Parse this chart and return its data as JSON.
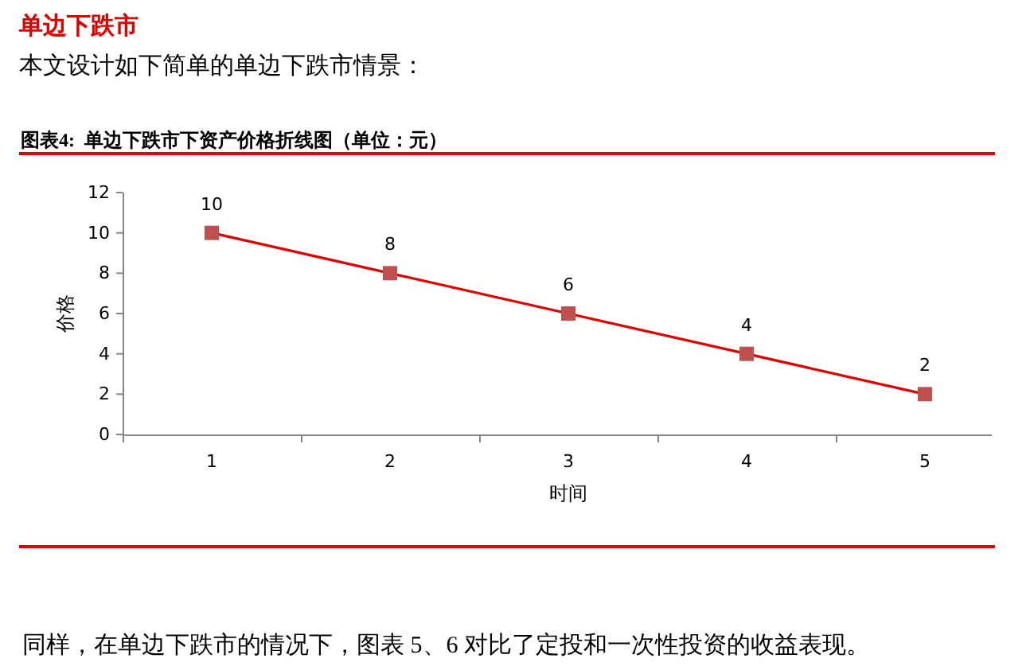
{
  "chart_data": {
    "type": "line",
    "title": "图表4:  单边下跌市下资产价格折线图（单位：元）",
    "annotations": [
      "单边下跌市",
      "本文设计如下简单的单边下跌市情景：",
      "同样，在单边下跌市的情况下，图表 5、6 对比了定投和一次性投资的收益表现。"
    ],
    "categories": [
      "1",
      "2",
      "3",
      "4",
      "5"
    ],
    "values": [
      10,
      8,
      6,
      4,
      2
    ],
    "color": "#e00000",
    "colors": [
      "#c0504d",
      "#c0504d",
      "#c0504d",
      "#c0504d",
      "#c0504d"
    ],
    "marker": "square",
    "line_style": "solid",
    "data_labels": true,
    "xlabel": "时间",
    "ylabel": "价格",
    "ylim": [
      0,
      12
    ],
    "yticks": [
      0,
      2,
      4,
      6,
      8,
      10,
      12
    ],
    "grid": false
  }
}
